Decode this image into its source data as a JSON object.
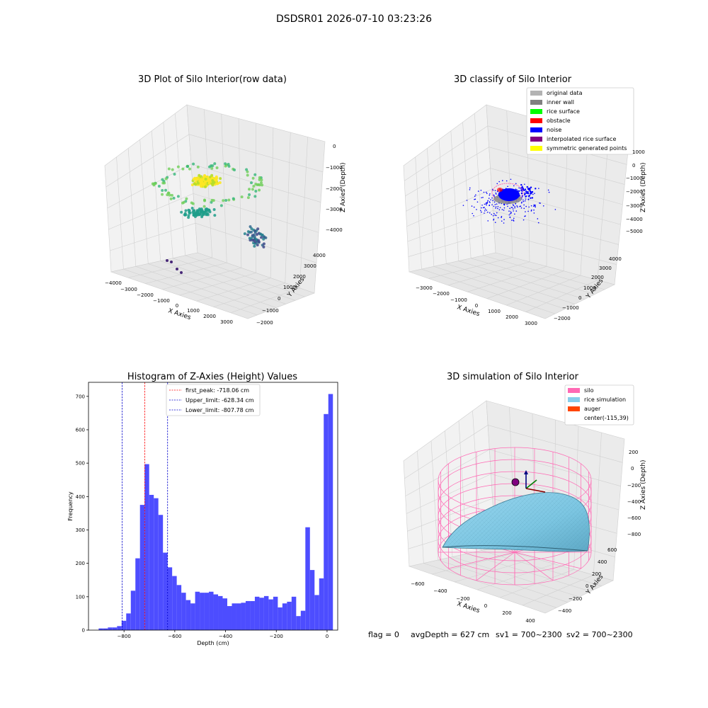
{
  "figure": {
    "suptitle": "DSDSR01 2026-07-10 03:23:26",
    "footer": {
      "flag": "flag = 0",
      "avg_depth": "avgDepth = 627 cm",
      "sv1": "sv1 = 700~2300",
      "sv2": "sv2 = 700~2300"
    }
  },
  "colors": {
    "hist_bar": "#4d4dff",
    "first_peak_line": "#ff0000",
    "limit_line": "#0000cc",
    "silo": "#ff69b4",
    "rice": "#87ceeb",
    "auger": "#ff4500",
    "original": "#b3b3b3",
    "inner_wall": "#808080",
    "rice_surface": "#00ff00",
    "obstacle": "#ff0000",
    "noise": "#0000ff",
    "interp_surface": "#800080",
    "symmetric": "#ffff00"
  },
  "chart_data": [
    {
      "type": "scatter",
      "title": "3D Plot of Silo Interior(row data)",
      "xlabel": "X Axies",
      "ylabel": "Y Axies",
      "zlabel": "Z Axies (Depth)",
      "xticks": [
        "−4000",
        "−3000",
        "−2000",
        "−1000",
        "0",
        "1000",
        "2000",
        "3000"
      ],
      "yticks": [
        "−2000",
        "−1000",
        "0",
        "1000",
        "2000",
        "3000",
        "4000"
      ],
      "zticks": [
        "0",
        "−1000",
        "−2000",
        "−3000",
        "−4000"
      ],
      "xlim": [
        -4000,
        3500
      ],
      "ylim": [
        -2000,
        4500
      ],
      "zlim": [
        -4500,
        0
      ]
    },
    {
      "type": "scatter",
      "title": "3D classify of Silo Interior",
      "xlabel": "X Axies",
      "ylabel": "Y Axies",
      "zlabel": "Z Axies (Depth)",
      "xticks": [
        "−3000",
        "−2000",
        "−1000",
        "0",
        "1000",
        "2000",
        "3000"
      ],
      "yticks": [
        "−2000",
        "−1000",
        "0",
        "1000",
        "2000",
        "3000",
        "4000"
      ],
      "zticks": [
        "1000",
        "0",
        "−1000",
        "−2000",
        "−3000",
        "−4000",
        "−5000"
      ],
      "legend": [
        "original data",
        "inner wall",
        "rice surface",
        "obstacle",
        "noise",
        "interpolated rice surface",
        "symmetric generated points"
      ],
      "legend_position": "top-right"
    },
    {
      "type": "bar",
      "title": "Histogram of Z-Axies (Height) Values",
      "xlabel": "Depth (cm)",
      "ylabel": "Frequency",
      "xlim": [
        -940,
        42
      ],
      "ylim": [
        0,
        742
      ],
      "xticks": [
        -800,
        -600,
        -400,
        -200,
        0
      ],
      "yticks": [
        0,
        100,
        200,
        300,
        400,
        500,
        600,
        700
      ],
      "bin_width": 18.1,
      "bin_start": -900,
      "values": [
        5,
        5,
        8,
        8,
        12,
        28,
        50,
        118,
        215,
        375,
        497,
        405,
        395,
        345,
        232,
        188,
        162,
        135,
        112,
        90,
        80,
        115,
        112,
        112,
        115,
        107,
        102,
        95,
        72,
        80,
        80,
        82,
        87,
        87,
        100,
        97,
        102,
        92,
        100,
        68,
        80,
        85,
        100,
        42,
        58,
        308,
        180,
        105,
        155,
        647,
        707
      ],
      "lines": [
        {
          "label": "first_peak: -718.06 cm",
          "value": -718.06,
          "style": "red"
        },
        {
          "label": "Upper_limit: -628.34 cm",
          "value": -628.34,
          "style": "blue"
        },
        {
          "label": "Lower_limit: -807.78 cm",
          "value": -807.78,
          "style": "blue"
        }
      ],
      "legend_position": "top-center"
    },
    {
      "type": "area",
      "title": "3D simulation of Silo Interior",
      "xlabel": "X Axies",
      "ylabel": "Y Axies",
      "zlabel": "Z Axies (Depth)",
      "xticks": [
        "−600",
        "−400",
        "−200",
        "0",
        "200",
        "400"
      ],
      "yticks": [
        "−400",
        "−200",
        "0",
        "200",
        "400",
        "600"
      ],
      "zticks": [
        "200",
        "0",
        "−200",
        "−400",
        "−600",
        "−800"
      ],
      "legend": [
        "silo",
        "rice simulation",
        "auger",
        "center(-115,39)"
      ],
      "legend_position": "top-right"
    }
  ]
}
